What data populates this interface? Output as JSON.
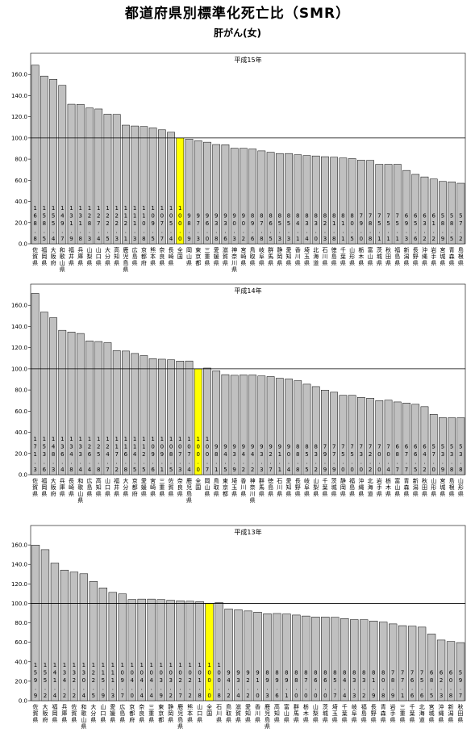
{
  "page": {
    "title": "都道府県別標準化死亡比（SMR）",
    "subtitle": "肝がん(女)"
  },
  "chart_data": [
    {
      "type": "bar",
      "title": "平成15年",
      "ylim": [
        0,
        180
      ],
      "yticks": [
        "0.0",
        "20.0",
        "40.0",
        "60.0",
        "80.0",
        "100.0",
        "120.0",
        "140.0",
        "160.0"
      ],
      "reference_line": 100,
      "highlight": "全国",
      "highlight_color": "#ffff00",
      "bar_color": "#c0c0c0",
      "categories": [
        "佐賀県",
        "福岡県",
        "大阪府",
        "和歌山県",
        "福井県",
        "兵庫県",
        "山梨県",
        "山口県",
        "大分県",
        "高知県",
        "鹿児島県",
        "広島県",
        "京都府",
        "熊本県",
        "奈良県",
        "長崎県",
        "全国",
        "岡山県",
        "東京都",
        "三重県",
        "愛媛県",
        "滋賀県",
        "神奈川県",
        "宮崎県",
        "鳥取県",
        "岐阜県",
        "群馬県",
        "静岡県",
        "愛知県",
        "香川県",
        "埼玉県",
        "北海道",
        "石川県",
        "徳島県",
        "千葉県",
        "山形県",
        "栃木県",
        "富山県",
        "茨城県",
        "秋田県",
        "福島県",
        "新潟県",
        "長野県",
        "沖縄県",
        "岩手県",
        "宮城県",
        "青森県",
        "島根県"
      ],
      "values": [
        168.8,
        158.5,
        155.4,
        149.7,
        131.9,
        131.8,
        128.3,
        127.4,
        122.5,
        122.3,
        112.1,
        111.3,
        110.8,
        109.5,
        107.7,
        105.4,
        100.0,
        98.9,
        97.3,
        96.0,
        93.8,
        93.6,
        90.3,
        90.2,
        89.6,
        87.8,
        86.5,
        85.3,
        85.3,
        84.1,
        83.4,
        83.0,
        82.3,
        81.8,
        81.1,
        80.5,
        79.0,
        78.8,
        75.1,
        75.1,
        75.1,
        69.3,
        65.6,
        63.2,
        61.2,
        58.9,
        58.5,
        57.2
      ]
    },
    {
      "type": "bar",
      "title": "平成14年",
      "ylim": [
        0,
        180
      ],
      "yticks": [
        "0.0",
        "20.0",
        "40.0",
        "60.0",
        "80.0",
        "100.0",
        "120.0",
        "140.0",
        "160.0"
      ],
      "reference_line": 100,
      "highlight": "全国",
      "highlight_color": "#ffff00",
      "bar_color": "#c0c0c0",
      "categories": [
        "佐賀県",
        "福岡県",
        "大阪府",
        "兵庫県",
        "長崎県",
        "和歌山県",
        "広島県",
        "高知県",
        "山口県",
        "福井県",
        "大分県",
        "京都府",
        "愛媛県",
        "宮崎県",
        "三重県",
        "佐賀県",
        "奈良県",
        "鹿児島県",
        "全国",
        "岡山県",
        "鳥取県",
        "東京都",
        "埼玉県",
        "香川県",
        "神奈川県",
        "群馬県",
        "徳島県",
        "石川県",
        "愛知県",
        "長野県",
        "岐阜県",
        "山梨県",
        "千葉県",
        "茨城県",
        "静岡県",
        "福島県",
        "沖縄県",
        "北海道",
        "岩手県",
        "栃木県",
        "富山県",
        "青森県",
        "新潟県",
        "秋田県",
        "山形県",
        "宮城県",
        "島根県",
        "山形県"
      ],
      "values": [
        171.3,
        153.6,
        148.3,
        136.4,
        134.8,
        133.4,
        126.4,
        125.8,
        124.7,
        117.2,
        116.8,
        114.5,
        112.5,
        109.6,
        109.1,
        108.5,
        107.3,
        107.4,
        100.0,
        100.7,
        98.1,
        94.5,
        93.9,
        94.2,
        94.2,
        93.3,
        92.7,
        91.1,
        90.4,
        88.8,
        85.5,
        83.2,
        79.9,
        77.9,
        75.0,
        75.0,
        73.0,
        72.2,
        70.0,
        70.4,
        68.7,
        67.7,
        66.5,
        64.2,
        57.0,
        53.9,
        53.8,
        53.8
      ]
    },
    {
      "type": "bar",
      "title": "平成13年",
      "ylim": [
        0,
        180
      ],
      "yticks": [
        "0.0",
        "20.0",
        "40.0",
        "60.0",
        "80.0",
        "100.0",
        "120.0",
        "140.0",
        "160.0"
      ],
      "reference_line": 100,
      "highlight": "全国",
      "highlight_color": "#ffff00",
      "bar_color": "#c0c0c0",
      "categories": [
        "佐賀県",
        "大阪府",
        "福岡県",
        "兵庫県",
        "佐賀県",
        "和歌山県",
        "大分県",
        "山口県",
        "愛媛県",
        "広島県",
        "京都府",
        "奈良県",
        "三重県",
        "東京都",
        "静岡県",
        "鹿児島県",
        "熊本県",
        "山口県",
        "全国",
        "石川県",
        "鳥取県",
        "滋賀県",
        "愛知県",
        "香川県",
        "鹿児島県",
        "高知県",
        "富山県",
        "群馬県",
        "栃木県",
        "山梨県",
        "茨城県",
        "埼玉県",
        "千葉県",
        "岐阜県",
        "福島県",
        "長野県",
        "青森県",
        "岩手県",
        "三重県",
        "千葉県",
        "北海道",
        "宮城県",
        "沖縄県",
        "新潟県",
        "秋田県"
      ],
      "values": [
        159.9,
        155.2,
        141.4,
        134.2,
        132.2,
        130.4,
        122.5,
        115.9,
        111.3,
        109.7,
        104.0,
        104.4,
        104.4,
        103.9,
        103.2,
        102.7,
        102.2,
        101.8,
        100.0,
        100.8,
        94.2,
        93.4,
        92.2,
        91.0,
        89.3,
        89.6,
        89.1,
        88.0,
        87.0,
        86.0,
        86.0,
        85.7,
        84.4,
        83.3,
        83.2,
        81.9,
        80.8,
        78.9,
        77.1,
        76.6,
        75.6,
        68.5,
        62.3,
        60.8,
        59.7
      ]
    }
  ]
}
